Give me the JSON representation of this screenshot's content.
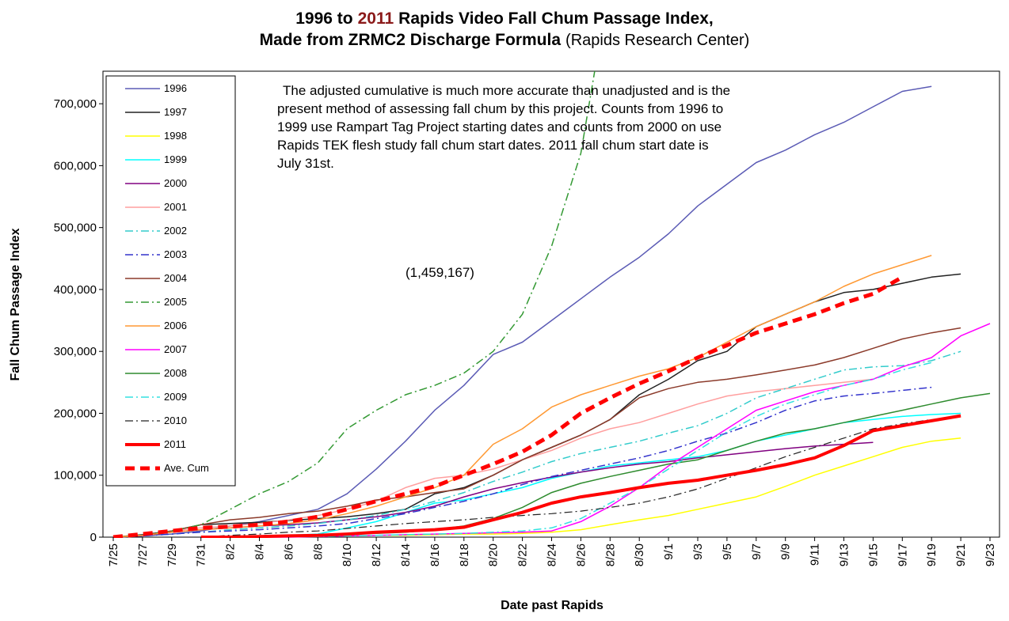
{
  "chart_data": {
    "type": "line",
    "title_lines": [
      [
        "1996 to",
        "2011",
        "Rapids Video Fall Chum Passage Index,"
      ],
      [
        "Made from ZRMC2 Discharge Formula",
        "(Rapids Research Center)"
      ]
    ],
    "title_highlight_color": "#8b1a1a",
    "annotation_lines": [
      "The adjusted cumulative is much more accurate than unadjusted and is the",
      "present method of assessing fall chum by this project. Counts from 1996 to",
      "1999 use Rampart Tag Project starting dates and counts from 2000 on use",
      "Rapids TEK flesh study fall chum start dates. 2011 fall chum start date is",
      "July 31st."
    ],
    "offchart_label": "(1,459,167)",
    "x_label": "Date past Rapids",
    "y_label": "Fall Chum Passage Index",
    "categories": [
      "7/25",
      "7/27",
      "7/29",
      "7/31",
      "8/2",
      "8/4",
      "8/6",
      "8/8",
      "8/10",
      "8/12",
      "8/14",
      "8/16",
      "8/18",
      "8/20",
      "8/22",
      "8/24",
      "8/26",
      "8/28",
      "8/30",
      "9/1",
      "9/3",
      "9/5",
      "9/7",
      "9/9",
      "9/11",
      "9/13",
      "9/15",
      "9/17",
      "9/19",
      "9/21",
      "9/23"
    ],
    "ylim": [
      0,
      750000
    ],
    "yticks": [
      0,
      {
        "value": 100000,
        "label": "100,000"
      },
      {
        "value": 200000,
        "label": "200,000"
      },
      {
        "value": 300000,
        "label": "300,000"
      },
      {
        "value": 400000,
        "label": "400,000"
      },
      {
        "value": 500000,
        "label": "500,000"
      },
      {
        "value": 600000,
        "label": "600,000"
      },
      {
        "value": 700000,
        "label": "700,000"
      }
    ],
    "grid": false,
    "legend": "top-left",
    "series": [
      {
        "name": "1996",
        "color": "#5b5bb5",
        "dash": "solid",
        "width": 1.5,
        "values": [
          0,
          2000,
          5000,
          10000,
          18000,
          25000,
          35000,
          45000,
          70000,
          110000,
          155000,
          205000,
          245000,
          295000,
          315000,
          350000,
          385000,
          420000,
          452000,
          490000,
          535000,
          570000,
          605000,
          625000,
          650000,
          670000,
          695000,
          720000,
          728000,
          null,
          null
        ]
      },
      {
        "name": "1997",
        "color": "#222222",
        "dash": "solid",
        "width": 1.5,
        "values": [
          0,
          4000,
          10000,
          20000,
          22000,
          24000,
          27000,
          30000,
          33000,
          38000,
          45000,
          70000,
          80000,
          100000,
          125000,
          145000,
          165000,
          190000,
          230000,
          255000,
          285000,
          300000,
          340000,
          360000,
          380000,
          395000,
          400000,
          410000,
          420000,
          425000,
          null
        ]
      },
      {
        "name": "1998",
        "color": "#ffff00",
        "dash": "solid",
        "width": 1.5,
        "values": [
          null,
          null,
          null,
          0,
          0,
          1000,
          1000,
          2000,
          2000,
          3000,
          3000,
          4000,
          5000,
          5000,
          6000,
          8000,
          12000,
          20000,
          28000,
          35000,
          45000,
          55000,
          65000,
          82000,
          100000,
          115000,
          130000,
          145000,
          155000,
          160000,
          null
        ]
      },
      {
        "name": "1999",
        "color": "#00ffff",
        "dash": "solid",
        "width": 1.5,
        "values": [
          null,
          null,
          null,
          null,
          0,
          1000,
          3000,
          5000,
          15000,
          25000,
          40000,
          55000,
          60000,
          70000,
          80000,
          95000,
          105000,
          115000,
          120000,
          125000,
          130000,
          140000,
          155000,
          165000,
          175000,
          185000,
          190000,
          195000,
          198000,
          200000,
          null
        ]
      },
      {
        "name": "2000",
        "color": "#800080",
        "dash": "solid",
        "width": 1.5,
        "values": [
          0,
          2000,
          8000,
          12000,
          15000,
          18000,
          20000,
          23000,
          28000,
          33000,
          40000,
          50000,
          65000,
          78000,
          88000,
          97000,
          105000,
          112000,
          118000,
          122000,
          128000,
          133000,
          138000,
          143000,
          147000,
          150000,
          153000,
          null,
          null,
          null,
          null
        ]
      },
      {
        "name": "2001",
        "color": "#ff9f9f",
        "dash": "solid",
        "width": 1.5,
        "values": [
          0,
          3000,
          10000,
          15000,
          18000,
          22000,
          28000,
          35000,
          45000,
          58000,
          80000,
          95000,
          100000,
          110000,
          125000,
          140000,
          160000,
          175000,
          185000,
          200000,
          215000,
          228000,
          235000,
          240000,
          245000,
          250000,
          255000,
          null,
          null,
          null,
          null
        ]
      },
      {
        "name": "2002",
        "color": "#33cccc",
        "dash": "dash-dot",
        "width": 1.5,
        "values": [
          0,
          2000,
          5000,
          8000,
          12000,
          15000,
          18000,
          22000,
          28000,
          35000,
          45000,
          58000,
          72000,
          90000,
          105000,
          122000,
          135000,
          145000,
          155000,
          168000,
          180000,
          200000,
          225000,
          240000,
          255000,
          270000,
          275000,
          277000,
          285000,
          300000,
          null
        ]
      },
      {
        "name": "2003",
        "color": "#3333cc",
        "dash": "dash-dot",
        "width": 1.5,
        "values": [
          0,
          2000,
          5000,
          8000,
          10000,
          12000,
          15000,
          18000,
          22000,
          30000,
          38000,
          48000,
          58000,
          70000,
          85000,
          98000,
          108000,
          118000,
          128000,
          140000,
          155000,
          168000,
          185000,
          205000,
          220000,
          228000,
          232000,
          237000,
          242000,
          null,
          null
        ]
      },
      {
        "name": "2004",
        "color": "#8b3a2a",
        "dash": "solid",
        "width": 1.5,
        "values": [
          0,
          3000,
          10000,
          20000,
          28000,
          32000,
          38000,
          42000,
          50000,
          60000,
          65000,
          72000,
          78000,
          100000,
          125000,
          145000,
          165000,
          190000,
          225000,
          240000,
          250000,
          255000,
          262000,
          270000,
          278000,
          290000,
          305000,
          320000,
          330000,
          338000,
          null
        ]
      },
      {
        "name": "2005",
        "color": "#339933",
        "dash": "dash-dot",
        "width": 1.5,
        "values": [
          0,
          3000,
          10000,
          20000,
          45000,
          70000,
          90000,
          120000,
          175000,
          205000,
          230000,
          245000,
          265000,
          300000,
          360000,
          470000,
          620000,
          900000,
          null,
          null,
          null,
          null,
          null,
          null,
          null,
          null,
          null,
          null,
          null,
          null,
          null
        ]
      },
      {
        "name": "2006",
        "color": "#ff9933",
        "dash": "solid",
        "width": 1.5,
        "values": [
          0,
          3000,
          8000,
          12000,
          15000,
          18000,
          22000,
          28000,
          38000,
          50000,
          65000,
          80000,
          100000,
          150000,
          175000,
          210000,
          230000,
          245000,
          260000,
          272000,
          290000,
          315000,
          340000,
          360000,
          380000,
          405000,
          425000,
          440000,
          455000,
          null,
          null
        ]
      },
      {
        "name": "2007",
        "color": "#ff00ff",
        "dash": "solid",
        "width": 1.5,
        "values": [
          null,
          null,
          null,
          0,
          0,
          0,
          0,
          1000,
          2000,
          3000,
          4000,
          5000,
          6000,
          7000,
          8000,
          10000,
          25000,
          50000,
          80000,
          115000,
          145000,
          175000,
          205000,
          220000,
          235000,
          245000,
          255000,
          275000,
          290000,
          325000,
          345000
        ]
      },
      {
        "name": "2008",
        "color": "#2e8b2e",
        "dash": "solid",
        "width": 1.5,
        "values": [
          null,
          null,
          null,
          0,
          1000,
          2000,
          3000,
          4000,
          5000,
          6000,
          8000,
          12000,
          18000,
          30000,
          48000,
          72000,
          87000,
          98000,
          108000,
          118000,
          125000,
          140000,
          155000,
          168000,
          175000,
          185000,
          195000,
          205000,
          215000,
          225000,
          232000
        ]
      },
      {
        "name": "2009",
        "color": "#33e0e0",
        "dash": "dash-dot",
        "width": 1.5,
        "values": [
          null,
          null,
          null,
          0,
          0,
          0,
          1000,
          1000,
          2000,
          3000,
          4000,
          5000,
          6000,
          8000,
          10000,
          15000,
          30000,
          55000,
          80000,
          110000,
          140000,
          170000,
          195000,
          215000,
          230000,
          245000,
          255000,
          270000,
          282000,
          null,
          null
        ]
      },
      {
        "name": "2010",
        "color": "#222222",
        "dash": "dash-dot",
        "width": 1.2,
        "values": [
          null,
          null,
          null,
          0,
          3000,
          5000,
          8000,
          10000,
          14000,
          18000,
          22000,
          25000,
          28000,
          32000,
          35000,
          38000,
          42000,
          48000,
          55000,
          65000,
          78000,
          95000,
          112000,
          130000,
          145000,
          160000,
          175000,
          183000,
          190000,
          null,
          null
        ]
      },
      {
        "name": "2011",
        "color": "#ff0000",
        "dash": "solid",
        "width": 4,
        "values": [
          null,
          null,
          null,
          0,
          0,
          1000,
          2000,
          3000,
          5000,
          8000,
          10000,
          12000,
          16000,
          28000,
          40000,
          55000,
          65000,
          72000,
          80000,
          87000,
          92000,
          100000,
          108000,
          117000,
          128000,
          148000,
          172000,
          180000,
          188000,
          196000,
          null
        ]
      },
      {
        "name": "Ave. Cum",
        "color": "#ff0000",
        "dash": "dash",
        "width": 5,
        "values": [
          0,
          5000,
          10000,
          15000,
          17000,
          20000,
          25000,
          33000,
          45000,
          58000,
          70000,
          82000,
          100000,
          118000,
          138000,
          165000,
          200000,
          225000,
          248000,
          268000,
          290000,
          310000,
          330000,
          345000,
          360000,
          378000,
          393000,
          420000,
          null,
          null,
          null
        ]
      }
    ]
  }
}
